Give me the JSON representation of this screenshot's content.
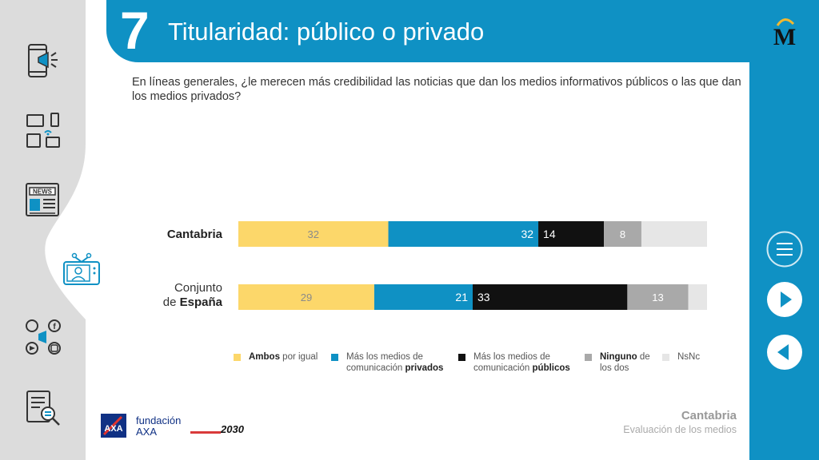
{
  "header": {
    "number": "7",
    "title": "Titularidad: público o privado"
  },
  "question": "En líneas generales, ¿le merecen más credibilidad las noticias que dan los medios informativos públicos o las que dan los medios privados?",
  "sidebar": {
    "icons": [
      "mobile-megaphone-icon",
      "devices-icon",
      "newspaper-icon",
      "tv-presenter-icon",
      "social-media-icon",
      "document-search-icon"
    ],
    "active": "tv-presenter-icon"
  },
  "right_nav": {
    "icons": [
      "menu-icon",
      "next-icon",
      "previous-icon"
    ]
  },
  "footer": {
    "region": "Cantabria",
    "subtitle": "Evaluación de los medios",
    "sponsor_line1": "fundación",
    "sponsor_line2": "AXA",
    "year": "2030"
  },
  "legend": [
    {
      "bold": "Ambos",
      "rest": " por igual",
      "color": "#fcd76a"
    },
    {
      "pre": "Más los medios de",
      "pre2": "comunicación ",
      "bold": "privados",
      "color": "#0f91c4"
    },
    {
      "pre": "Más los medios de",
      "pre2": "comunicación ",
      "bold": "públicos",
      "color": "#111111"
    },
    {
      "bold": "Ninguno",
      "rest": " de",
      "line2": "los dos",
      "color": "#a9a9a9"
    },
    {
      "rest": "NsNc",
      "color": "#e6e6e6"
    }
  ],
  "chart_data": {
    "type": "bar",
    "stacked": true,
    "orientation": "horizontal",
    "percent_100": true,
    "categories": [
      "Cantabria",
      "Conjunto de España"
    ],
    "category_labels": [
      {
        "normal": "",
        "bold": "Cantabria"
      },
      {
        "normal1": "Conjunto",
        "normal2": "de ",
        "bold": "España"
      }
    ],
    "series": [
      {
        "name": "Ambos por igual",
        "values": [
          32,
          29
        ],
        "color": "#fcd76a",
        "label_color": "#8a8a8a"
      },
      {
        "name": "Más los medios de comunicación privados",
        "values": [
          32,
          21
        ],
        "color": "#0f91c4",
        "label_color": "#ffffff"
      },
      {
        "name": "Más los medios de comunicación públicos",
        "values": [
          14,
          33
        ],
        "color": "#111111",
        "label_color": "#ffffff"
      },
      {
        "name": "Ninguno de los dos",
        "values": [
          8,
          13
        ],
        "color": "#a9a9a9",
        "label_color": "#ffffff"
      },
      {
        "name": "NsNc",
        "values": [
          14,
          4
        ],
        "color": "#e6e6e6",
        "label_color": "#e6e6e6"
      }
    ],
    "data_labels": [
      [
        "32",
        "32",
        "14",
        "8",
        ""
      ],
      [
        "29",
        "21",
        "33",
        "13",
        ""
      ]
    ]
  }
}
